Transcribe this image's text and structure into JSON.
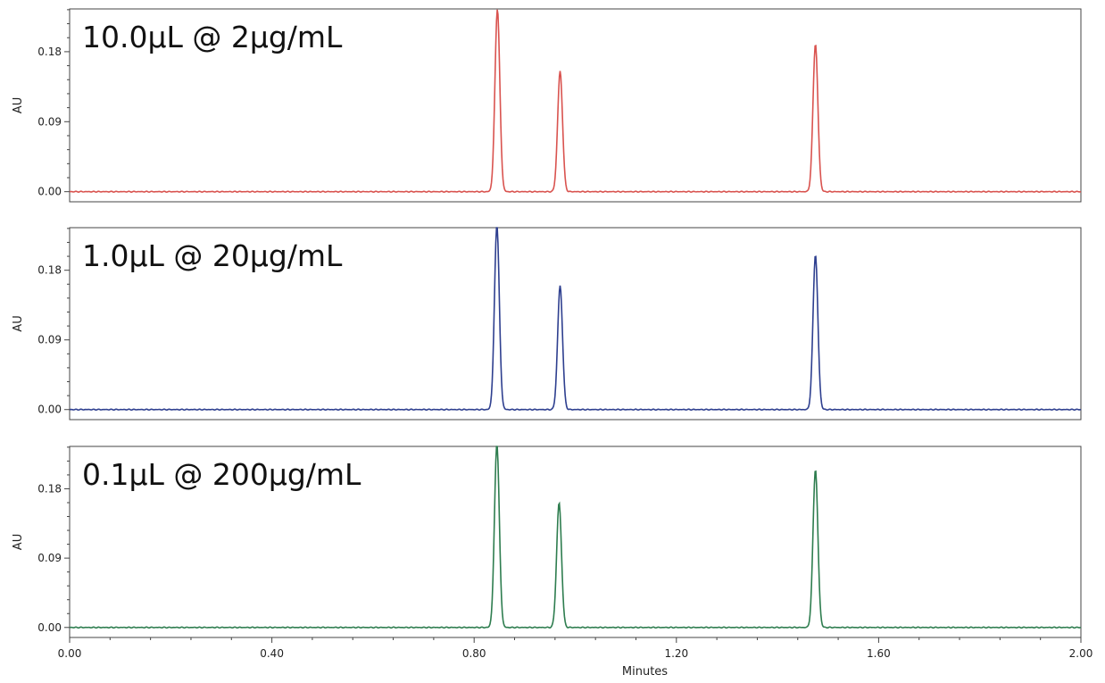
{
  "chart_data": [
    {
      "type": "line",
      "title": "10.0µL @ 2µg/mL",
      "xlabel": "",
      "ylabel": "AU",
      "xlim": [
        0.0,
        2.0
      ],
      "ylim": [
        -0.013,
        0.235
      ],
      "yticks": [
        0.0,
        0.09,
        0.18
      ],
      "ytick_labels": [
        "0.00",
        "0.09",
        "0.18"
      ],
      "color": "#d9534f",
      "peaks": [
        {
          "x": 0.846,
          "y": 0.235
        },
        {
          "x": 0.97,
          "y": 0.155
        },
        {
          "x": 1.475,
          "y": 0.19
        }
      ]
    },
    {
      "type": "line",
      "title": "1.0µL @ 20µg/mL",
      "xlabel": "",
      "ylabel": "AU",
      "xlim": [
        0.0,
        2.0
      ],
      "ylim": [
        -0.013,
        0.235
      ],
      "yticks": [
        0.0,
        0.09,
        0.18
      ],
      "ytick_labels": [
        "0.00",
        "0.09",
        "0.18"
      ],
      "color": "#2e3f8f",
      "peaks": [
        {
          "x": 0.845,
          "y": 0.238
        },
        {
          "x": 0.97,
          "y": 0.16
        },
        {
          "x": 1.475,
          "y": 0.2
        }
      ]
    },
    {
      "type": "line",
      "title": "0.1µL @ 200µg/mL",
      "xlabel": "Minutes",
      "ylabel": "AU",
      "xlim": [
        0.0,
        2.0
      ],
      "ylim": [
        -0.013,
        0.235
      ],
      "yticks": [
        0.0,
        0.09,
        0.18
      ],
      "ytick_labels": [
        "0.00",
        "0.09",
        "0.18"
      ],
      "xticks": [
        0.0,
        0.4,
        0.8,
        1.2,
        1.6,
        2.0
      ],
      "xtick_labels": [
        "0.00",
        "0.40",
        "0.80",
        "1.20",
        "1.60",
        "2.00"
      ],
      "color": "#2e7d4f",
      "peaks": [
        {
          "x": 0.845,
          "y": 0.238
        },
        {
          "x": 0.968,
          "y": 0.162
        },
        {
          "x": 1.475,
          "y": 0.205
        }
      ]
    }
  ]
}
